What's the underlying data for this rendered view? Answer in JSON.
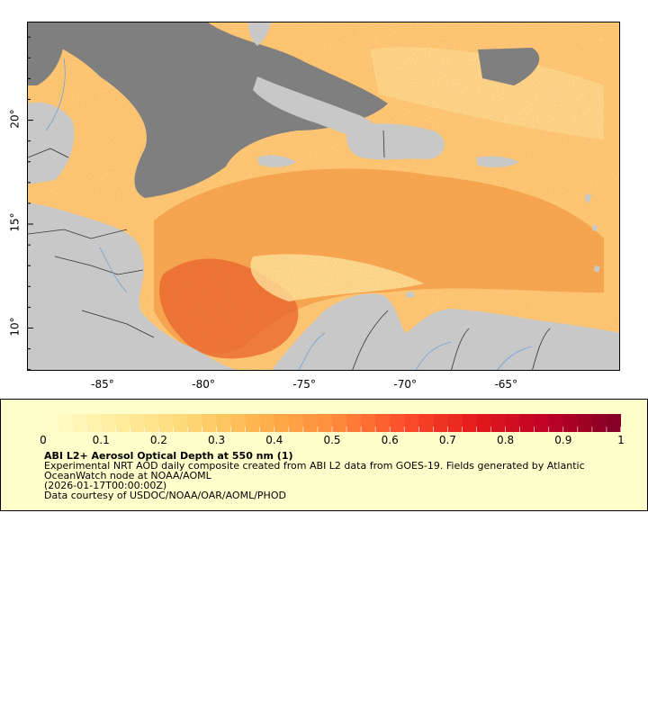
{
  "map": {
    "lon_min": -88.8,
    "lon_max": -59.4,
    "lat_min": 7.9,
    "lat_max": 24.7,
    "lon_ticks": [
      {
        "value": -85,
        "label": "-85°"
      },
      {
        "value": -80,
        "label": "-80°"
      },
      {
        "value": -75,
        "label": "-75°"
      },
      {
        "value": -70,
        "label": "-70°"
      },
      {
        "value": -65,
        "label": "-65°"
      }
    ],
    "lat_ticks": [
      {
        "value": 10,
        "label": "10°"
      },
      {
        "value": 15,
        "label": "15°"
      },
      {
        "value": 20,
        "label": "20°"
      }
    ],
    "colors": {
      "land": "#c8c8c8",
      "no_data": "#7f7f7f",
      "border": "#333333",
      "river": "#6fa0d8"
    }
  },
  "colorbar": {
    "min": 0,
    "max": 1,
    "tick_labels": [
      "0",
      "0.1",
      "0.2",
      "0.3",
      "0.4",
      "0.5",
      "0.6",
      "0.7",
      "0.8",
      "0.9",
      "1"
    ],
    "colors": [
      "#ffffcc",
      "#ffeda0",
      "#fed976",
      "#feb24c",
      "#fd8d3c",
      "#fc4e2a",
      "#e31a1c",
      "#bd0026",
      "#800026"
    ]
  },
  "legend": {
    "title": "ABI L2+ Aerosol Optical Depth at 550 nm (1)",
    "description": "Experimental NRT AOD daily composite created from ABI L2 data from GOES-19. Fields generated by Atlantic OceanWatch node at NOAA/AOML",
    "date": "(2026-01-17T00:00:00Z)",
    "credit": "Data courtesy of USDOC/NOAA/OAR/AOML/PHOD"
  }
}
